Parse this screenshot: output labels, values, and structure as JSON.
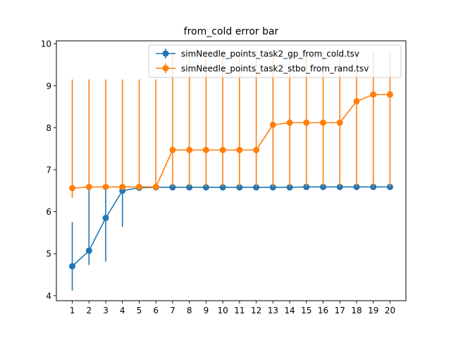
{
  "chart_data": {
    "type": "line",
    "title": "from_cold error bar",
    "xlabel": "",
    "ylabel": "",
    "x": [
      1,
      2,
      3,
      4,
      5,
      6,
      7,
      8,
      9,
      10,
      11,
      12,
      13,
      14,
      15,
      16,
      17,
      18,
      19,
      20
    ],
    "xlim": [
      0.05,
      20.95
    ],
    "ylim": [
      3.88,
      10.07
    ],
    "yticks": [
      4,
      5,
      6,
      7,
      8,
      9,
      10
    ],
    "grid": false,
    "legend_position": "top-right",
    "series": [
      {
        "name": "simNeedle_points_task2_gp_from_cold.tsv",
        "color": "#1f77b4",
        "values": [
          4.7,
          5.07,
          5.85,
          6.5,
          6.57,
          6.58,
          6.58,
          6.58,
          6.58,
          6.58,
          6.58,
          6.58,
          6.58,
          6.58,
          6.59,
          6.59,
          6.59,
          6.59,
          6.59,
          6.59
        ],
        "err_low": [
          4.12,
          4.73,
          4.81,
          5.64,
          6.51,
          6.57,
          6.58,
          6.58,
          6.58,
          6.58,
          6.58,
          6.58,
          6.58,
          6.58,
          6.59,
          6.59,
          6.59,
          6.59,
          6.59,
          6.59
        ],
        "err_high": [
          5.75,
          6.6,
          6.6,
          6.61,
          6.6,
          6.59,
          6.58,
          6.58,
          6.58,
          6.58,
          6.58,
          6.58,
          6.58,
          6.58,
          6.59,
          6.59,
          6.59,
          6.59,
          6.59,
          6.59
        ]
      },
      {
        "name": "simNeedle_points_task2_stbo_from_rand.tsv",
        "color": "#ff7f0e",
        "values": [
          6.56,
          6.59,
          6.59,
          6.59,
          6.59,
          6.59,
          7.47,
          7.47,
          7.47,
          7.47,
          7.47,
          7.47,
          8.07,
          8.12,
          8.12,
          8.12,
          8.12,
          8.63,
          8.79,
          8.79
        ],
        "err_low": [
          6.33,
          6.59,
          6.59,
          6.59,
          6.59,
          6.59,
          6.59,
          6.59,
          6.59,
          6.59,
          6.59,
          6.59,
          6.59,
          6.59,
          6.59,
          6.59,
          6.59,
          6.59,
          6.59,
          6.59
        ],
        "err_high": [
          9.15,
          9.15,
          9.15,
          9.15,
          9.15,
          9.15,
          9.8,
          9.8,
          9.8,
          9.8,
          9.8,
          9.8,
          9.8,
          9.8,
          9.8,
          9.8,
          9.8,
          9.8,
          9.8,
          9.8
        ]
      }
    ]
  }
}
